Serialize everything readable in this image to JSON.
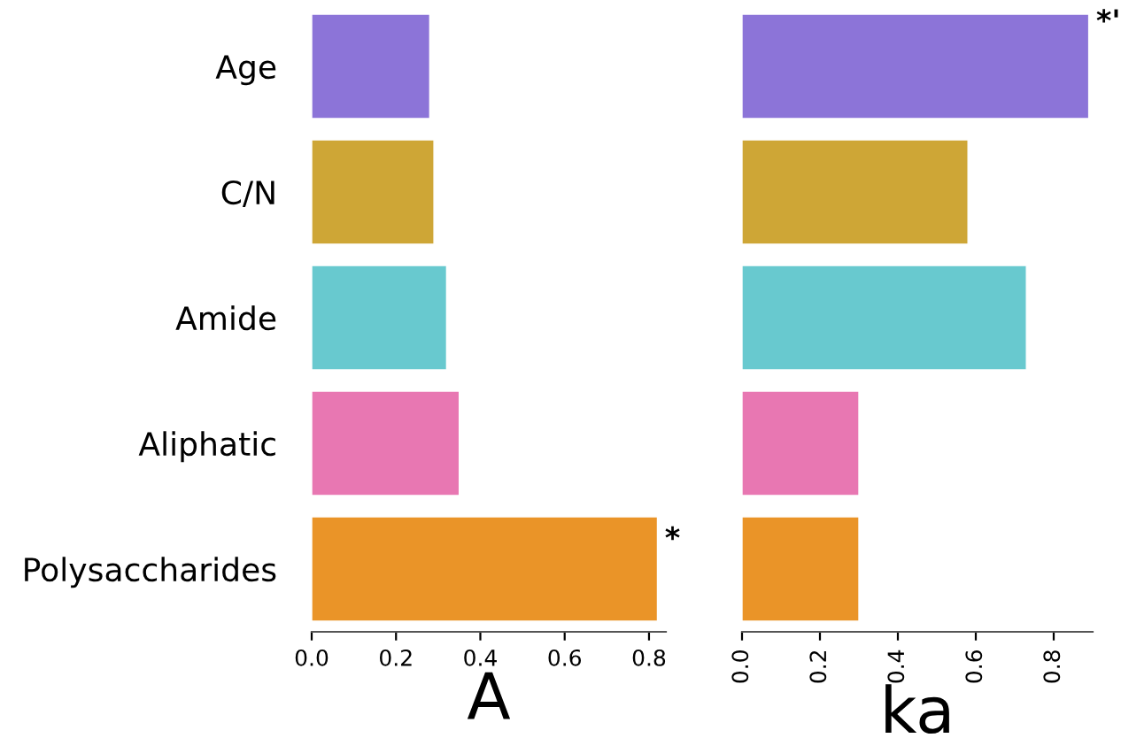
{
  "chart_data": [
    {
      "type": "bar",
      "orientation": "horizontal",
      "xlabel": "A",
      "categories": [
        "Age",
        "C/N",
        "Amide",
        "Aliphatic",
        "Polysaccharides"
      ],
      "values": [
        0.28,
        0.29,
        0.32,
        0.35,
        0.82
      ],
      "colors": [
        "#8c74d8",
        "#cea636",
        "#68c9cf",
        "#e877b2",
        "#ea9428"
      ],
      "xlim": [
        0,
        0.84
      ],
      "xticks": [
        {
          "value": 0,
          "label": "0.0"
        },
        0.2,
        0.4,
        0.6,
        0.8
      ],
      "grid": false,
      "annotations": [
        {
          "text": "*",
          "x": 0.82,
          "y": "Polysaccharides"
        }
      ]
    },
    {
      "type": "bar",
      "orientation": "horizontal",
      "xlabel": "ka",
      "categories": [
        null,
        null,
        null,
        null,
        null
      ],
      "values": [
        0.89,
        0.58,
        0.73,
        0.3,
        0.3
      ],
      "colors": [
        "#8c74d8",
        "#cea636",
        "#68c9cf",
        "#e877b2",
        "#ea9428"
      ],
      "xlim": [
        0,
        0.9
      ],
      "xticks": [
        {
          "value": 0,
          "label": "0.0"
        },
        0.2,
        0.4,
        0.6,
        0.8
      ],
      "grid": false,
      "tick_labels": "x",
      "annotations": [
        {
          "text": "*'",
          "x": 0.89
        }
      ]
    }
  ]
}
